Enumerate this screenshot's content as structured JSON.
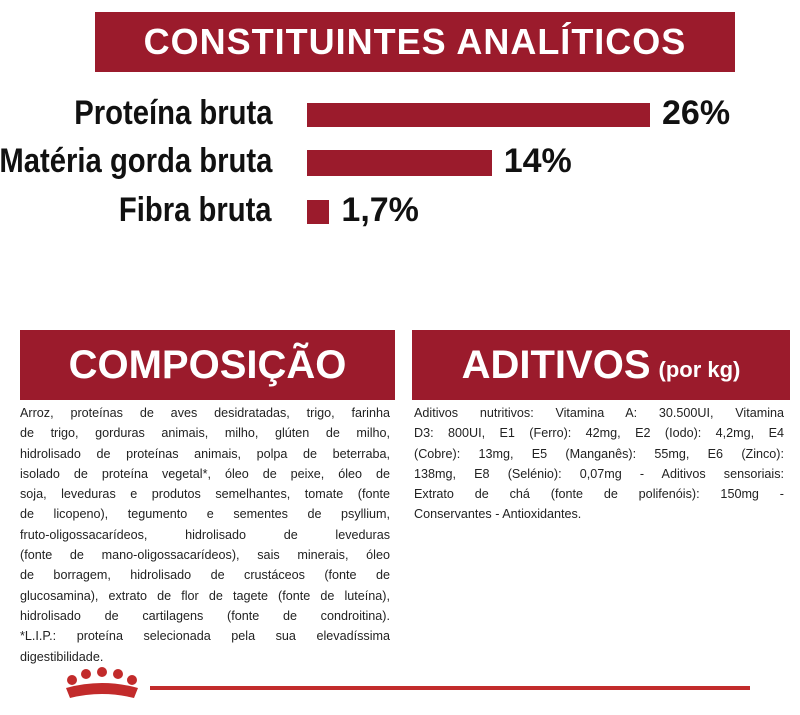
{
  "chart_data": {
    "type": "bar",
    "orientation": "horizontal",
    "title": "CONSTITUINTES ANALÍTICOS",
    "categories": [
      "Proteína bruta",
      "Matéria gorda bruta",
      "Fibra bruta"
    ],
    "values": [
      26,
      14,
      1.7
    ],
    "value_labels": [
      "26%",
      "14%",
      "1,7%"
    ],
    "color": "#9b1b2c"
  },
  "composicao": {
    "title": "COMPOSIÇÃO",
    "lines": [
      "Arroz, proteínas de aves desidratadas, trigo, farinha",
      "de trigo, gorduras animais, milho, glúten de milho,",
      "hidrolisado de proteínas animais, polpa de beterraba,",
      "isolado de proteína vegetal*, óleo de peixe, óleo de",
      "soja, leveduras e produtos semelhantes, tomate (fonte",
      "de licopeno), tegumento e sementes de psyllium,",
      "fruto-oligossacarídeos, hidrolisado de leveduras",
      "(fonte de mano-oligossacarídeos), sais minerais, óleo",
      "de borragem, hidrolisado de crustáceos (fonte de",
      "glucosamina), extrato de flor de tagete (fonte de luteína),",
      "hidrolisado de cartilagens (fonte de condroitina).",
      "*L.I.P.: proteína selecionada pela sua elevadíssima",
      "digestibilidade."
    ]
  },
  "aditivos": {
    "title": "ADITIVOS",
    "subtitle": "(por kg)",
    "lines": [
      "Aditivos nutritivos: Vitamina A: 30.500UI, Vitamina",
      "D3: 800UI, E1 (Ferro): 42mg, E2 (Iodo): 4,2mg, E4",
      "(Cobre): 13mg, E5 (Manganês): 55mg, E6 (Zinco):",
      "138mg, E8 (Selénio): 0,07mg - Aditivos sensoriais:",
      "Extrato de chá (fonte de polifenóis): 150mg -",
      "Conservantes - Antioxidantes."
    ]
  }
}
